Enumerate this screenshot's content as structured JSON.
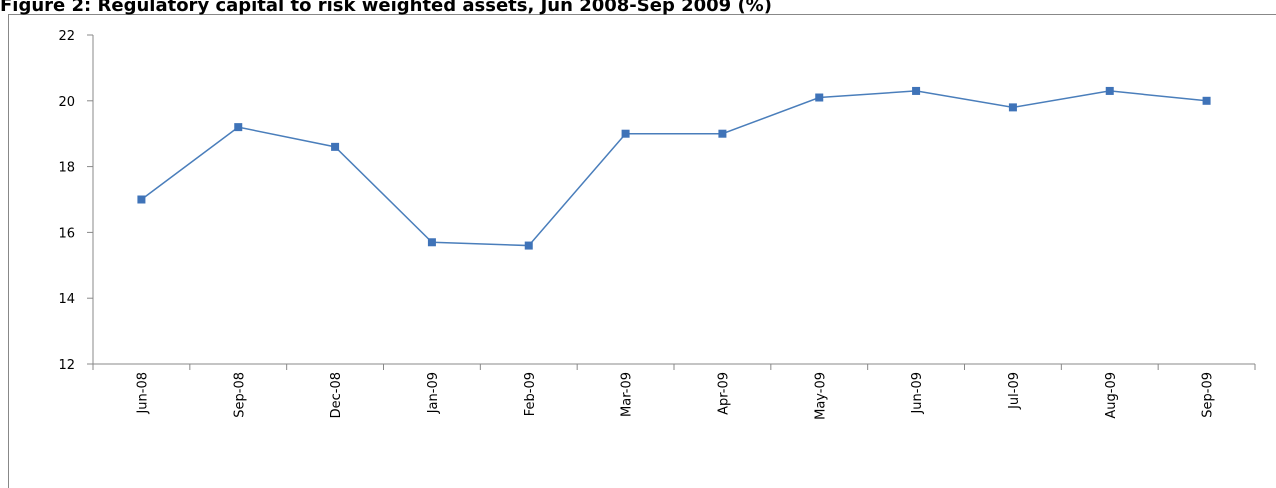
{
  "chart_data": {
    "type": "line",
    "title": "Figure 2: Regulatory capital to risk weighted assets, Jun 2008-Sep 2009 (%)",
    "categories": [
      "Jun-08",
      "Sep-08",
      "Dec-08",
      "Jan-09",
      "Feb-09",
      "Mar-09",
      "Apr-09",
      "May-09",
      "Jun-09",
      "Jul-09",
      "Aug-09",
      "Sep-09"
    ],
    "series": [
      {
        "color": "#4a7ebb",
        "values": [
          17,
          19.2,
          18.6,
          15.7,
          15.6,
          19,
          19,
          20.1,
          20.3,
          19.8,
          20.3,
          20
        ]
      }
    ],
    "ylim": [
      12,
      22
    ],
    "yticks": [
      12,
      14,
      16,
      18,
      20,
      22
    ],
    "grid": false
  }
}
